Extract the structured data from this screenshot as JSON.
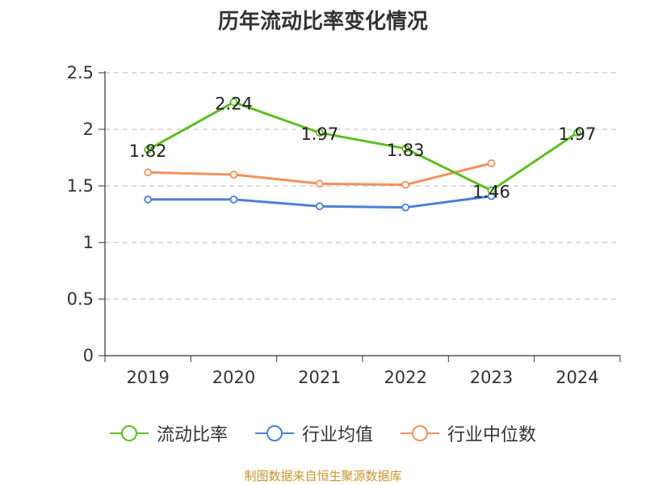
{
  "chart_data": {
    "type": "line",
    "title": "历年流动比率变化情况",
    "categories": [
      "2019",
      "2020",
      "2021",
      "2022",
      "2023",
      "2024"
    ],
    "ylim": [
      0,
      2.5
    ],
    "yticks": [
      "0",
      "0.5",
      "1",
      "1.5",
      "2",
      "2.5"
    ],
    "grid": true,
    "legend_position": "bottom",
    "series": [
      {
        "name": "流动比率",
        "color": "#5dbf20",
        "values": [
          1.82,
          2.24,
          1.97,
          1.83,
          1.46,
          1.97
        ],
        "labels": [
          "1.82",
          "2.24",
          "1.97",
          "1.83",
          "1.46",
          "1.97"
        ]
      },
      {
        "name": "行业均值",
        "color": "#4b7fd8",
        "values": [
          1.38,
          1.38,
          1.32,
          1.31,
          1.41,
          null
        ]
      },
      {
        "name": "行业中位数",
        "color": "#f4905c",
        "values": [
          1.62,
          1.6,
          1.52,
          1.51,
          1.7,
          null
        ]
      }
    ]
  },
  "footer": {
    "source": "制图数据来自恒生聚源数据库"
  }
}
